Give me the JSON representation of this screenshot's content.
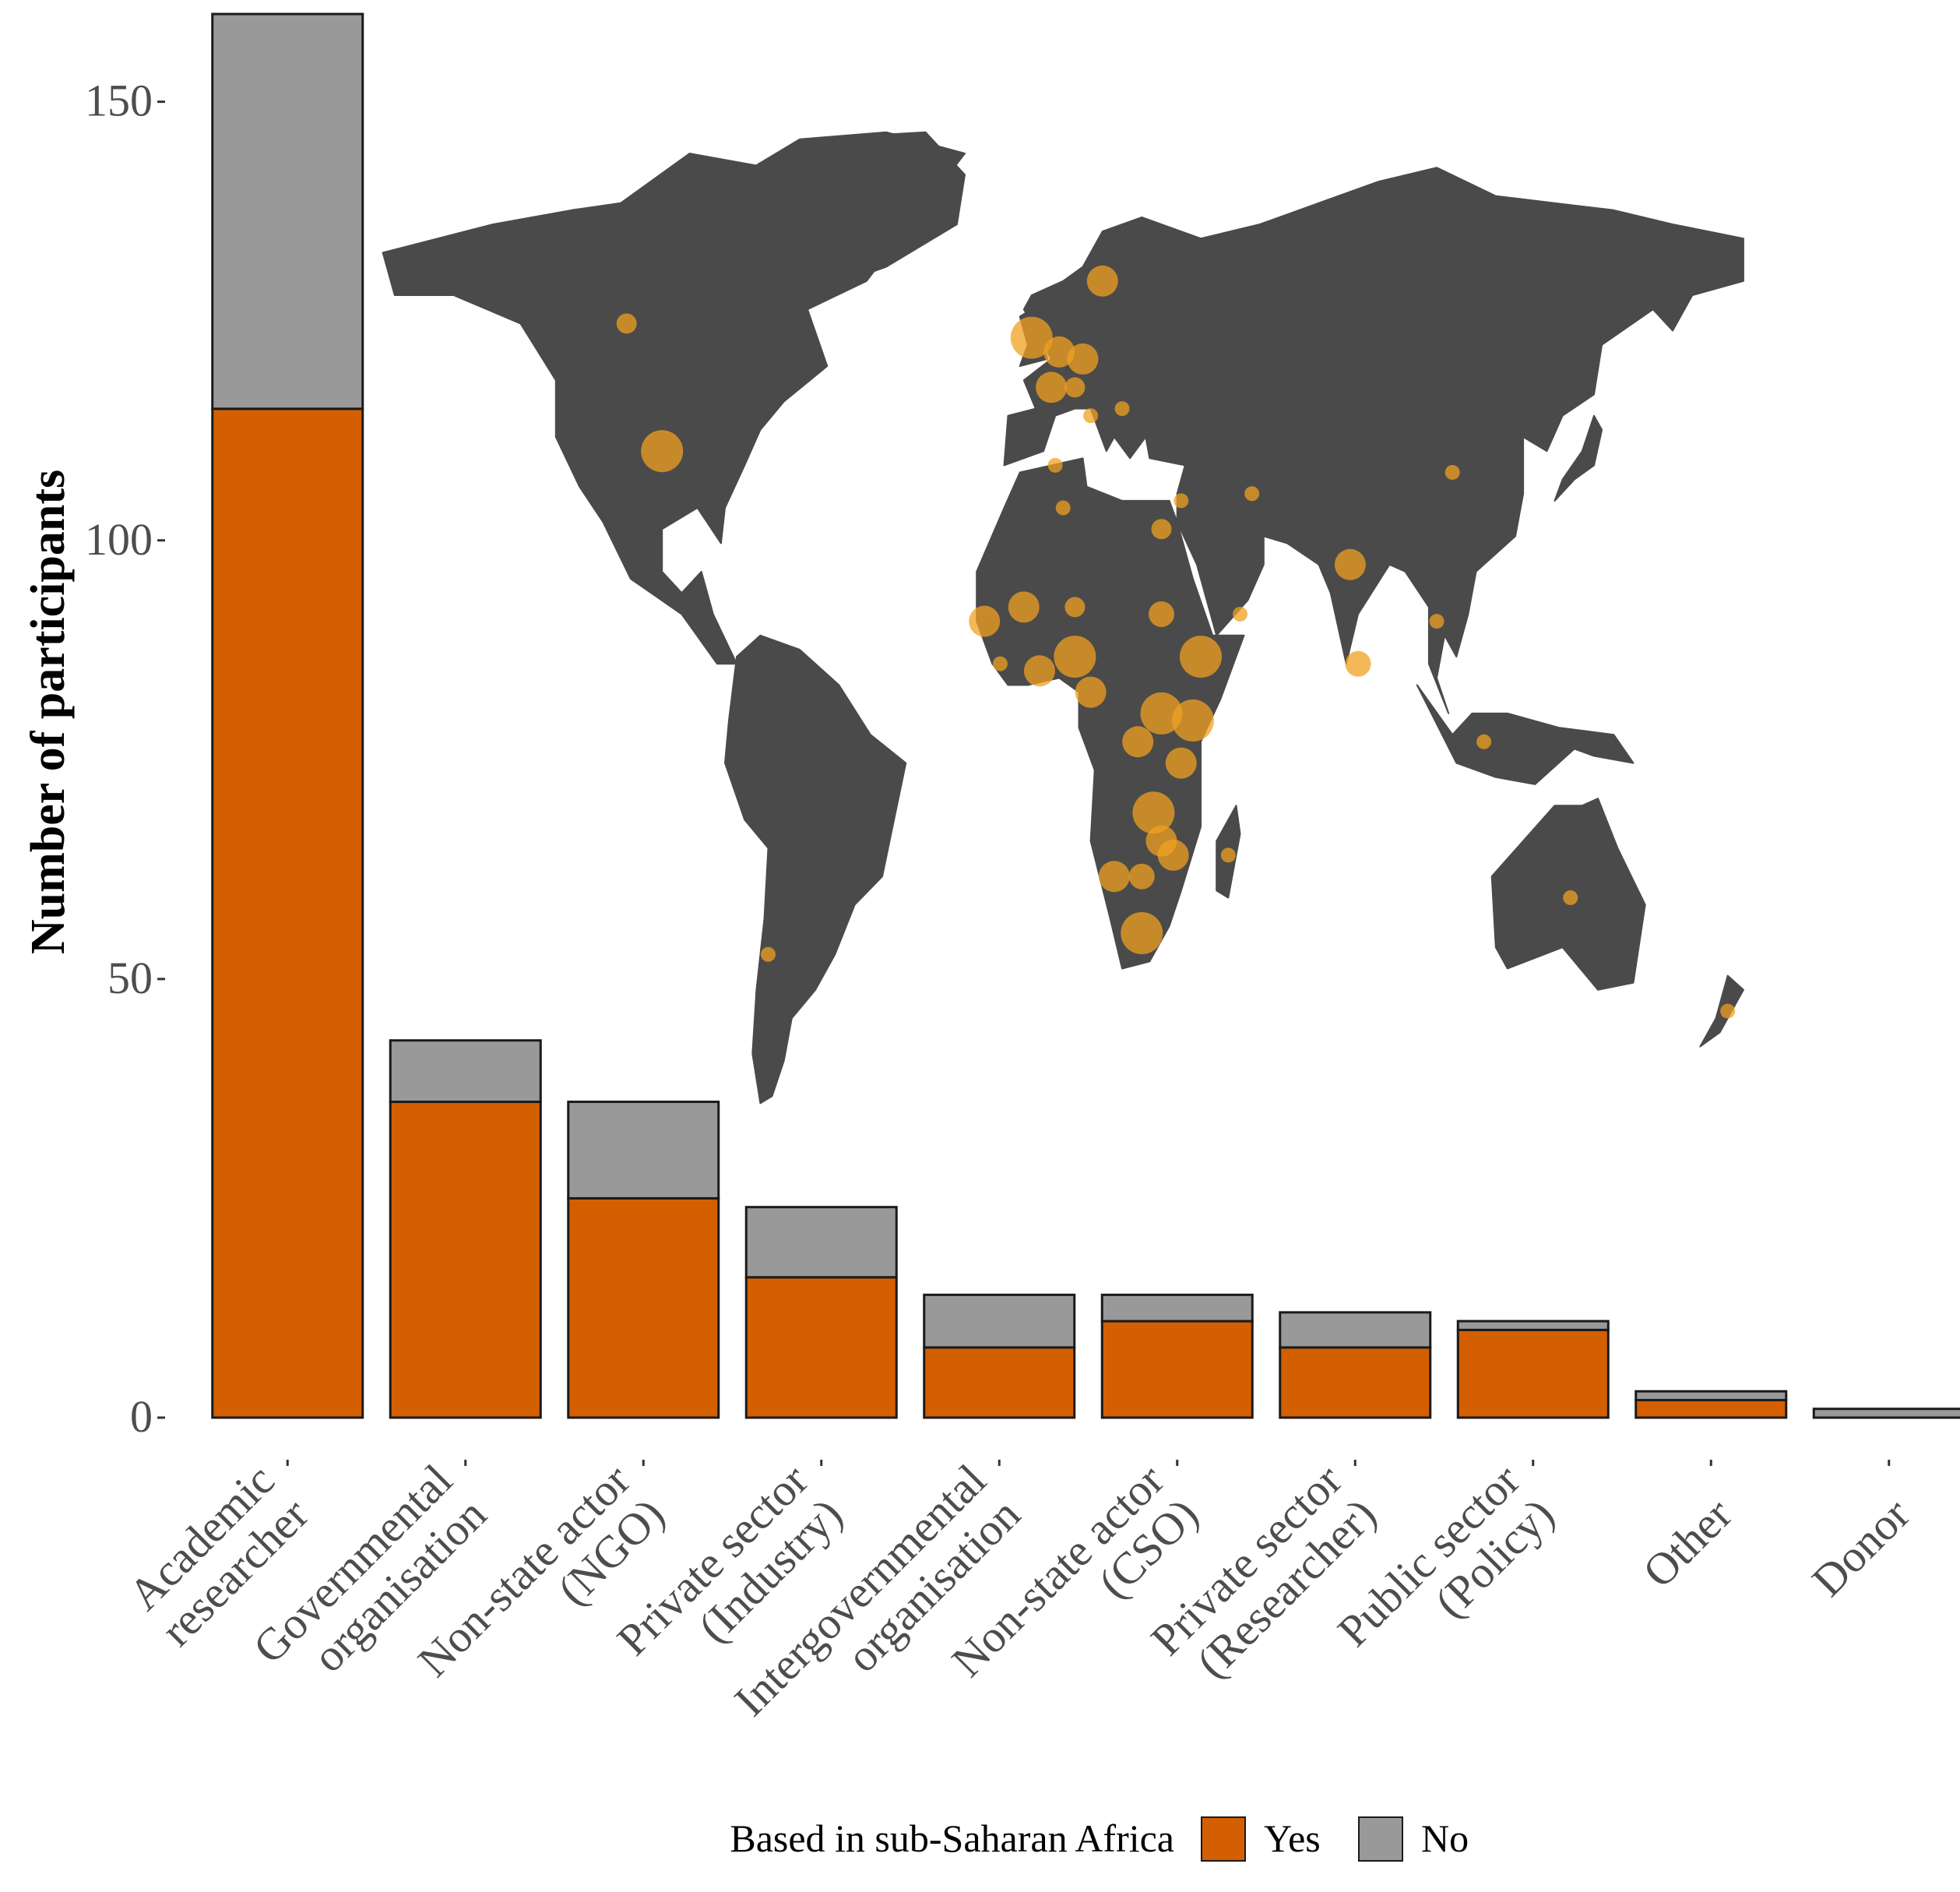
{
  "chart_data": {
    "type": "bar",
    "stacked": true,
    "ylabel": "Number of participants",
    "xlabel": "",
    "ylim": [
      0,
      160
    ],
    "yticks": [
      0,
      50,
      100,
      150
    ],
    "ytick_labels": [
      "0",
      "50",
      "100",
      "150"
    ],
    "categories": [
      [
        "Academic",
        "researcher"
      ],
      [
        "Governmental",
        "organisation"
      ],
      [
        "Non-state actor",
        "(NGO)"
      ],
      [
        "Private sector",
        "(Industry)"
      ],
      [
        "Intergovernmental",
        "organisation"
      ],
      [
        "Non-state actor",
        "(CSO)"
      ],
      [
        "Private sector",
        "(Researcher)"
      ],
      [
        "Public sector",
        "(Policy)"
      ],
      [
        "Other"
      ],
      [
        "Donor"
      ]
    ],
    "series": [
      {
        "name": "Yes",
        "color": "#d35f00",
        "values": [
          115,
          36,
          25,
          16,
          8,
          11,
          8,
          10,
          2,
          0
        ]
      },
      {
        "name": "No",
        "color": "#999999",
        "values": [
          45,
          7,
          11,
          8,
          6,
          3,
          4,
          1,
          1,
          1
        ]
      }
    ],
    "legend": {
      "title": "Based in sub-Saharan Africa",
      "position": "bottom"
    },
    "grid": false,
    "inset": {
      "type": "world-map",
      "land_color": "#4a4a4a",
      "marker_color": "#f0a020",
      "markers": [
        {
          "lon": -106,
          "lat": 56,
          "size": 1
        },
        {
          "lon": -97,
          "lat": 38,
          "size": 3
        },
        {
          "lon": -3,
          "lat": 54,
          "size": 3
        },
        {
          "lon": 4,
          "lat": 52,
          "size": 2
        },
        {
          "lon": 10,
          "lat": 51,
          "size": 2
        },
        {
          "lon": 15,
          "lat": 62,
          "size": 2
        },
        {
          "lon": 2,
          "lat": 47,
          "size": 2
        },
        {
          "lon": 8,
          "lat": 47,
          "size": 1
        },
        {
          "lon": 12,
          "lat": 43,
          "size": 0.5
        },
        {
          "lon": 3,
          "lat": 36,
          "size": 0.5
        },
        {
          "lon": 30,
          "lat": 27,
          "size": 1
        },
        {
          "lon": 20,
          "lat": 44,
          "size": 0.5
        },
        {
          "lon": 35,
          "lat": 31,
          "size": 0.5
        },
        {
          "lon": 53,
          "lat": 32,
          "size": 0.5
        },
        {
          "lon": 78,
          "lat": 22,
          "size": 2
        },
        {
          "lon": 80,
          "lat": 8,
          "size": 1.5
        },
        {
          "lon": 104,
          "lat": 35,
          "size": 0.5
        },
        {
          "lon": 100,
          "lat": 14,
          "size": 0.5
        },
        {
          "lon": 5,
          "lat": 30,
          "size": 0.5
        },
        {
          "lon": -15,
          "lat": 14,
          "size": 2
        },
        {
          "lon": -5,
          "lat": 16,
          "size": 2
        },
        {
          "lon": -1,
          "lat": 7,
          "size": 2
        },
        {
          "lon": 8,
          "lat": 9,
          "size": 3
        },
        {
          "lon": 8,
          "lat": 16,
          "size": 1
        },
        {
          "lon": 12,
          "lat": 4,
          "size": 2
        },
        {
          "lon": 30,
          "lat": 15,
          "size": 1.5
        },
        {
          "lon": 40,
          "lat": 9,
          "size": 3
        },
        {
          "lon": 30,
          "lat": 1,
          "size": 3
        },
        {
          "lon": 38,
          "lat": 0,
          "size": 3
        },
        {
          "lon": 24,
          "lat": -3,
          "size": 2
        },
        {
          "lon": 35,
          "lat": -6,
          "size": 2
        },
        {
          "lon": 28,
          "lat": -13,
          "size": 3
        },
        {
          "lon": 30,
          "lat": -17,
          "size": 2
        },
        {
          "lon": 33,
          "lat": -19,
          "size": 2
        },
        {
          "lon": 18,
          "lat": -22,
          "size": 2
        },
        {
          "lon": 25,
          "lat": -22,
          "size": 1.5
        },
        {
          "lon": 25,
          "lat": -30,
          "size": 3
        },
        {
          "lon": 47,
          "lat": -19,
          "size": 0.5
        },
        {
          "lon": 50,
          "lat": 15,
          "size": 0.5
        },
        {
          "lon": -70,
          "lat": -33,
          "size": 0.5
        },
        {
          "lon": 134,
          "lat": -25,
          "size": 0.5
        },
        {
          "lon": 174,
          "lat": -41,
          "size": 0.5
        },
        {
          "lon": 112,
          "lat": -3,
          "size": 0.5
        },
        {
          "lon": -11,
          "lat": 8,
          "size": 0.5
        }
      ]
    }
  }
}
